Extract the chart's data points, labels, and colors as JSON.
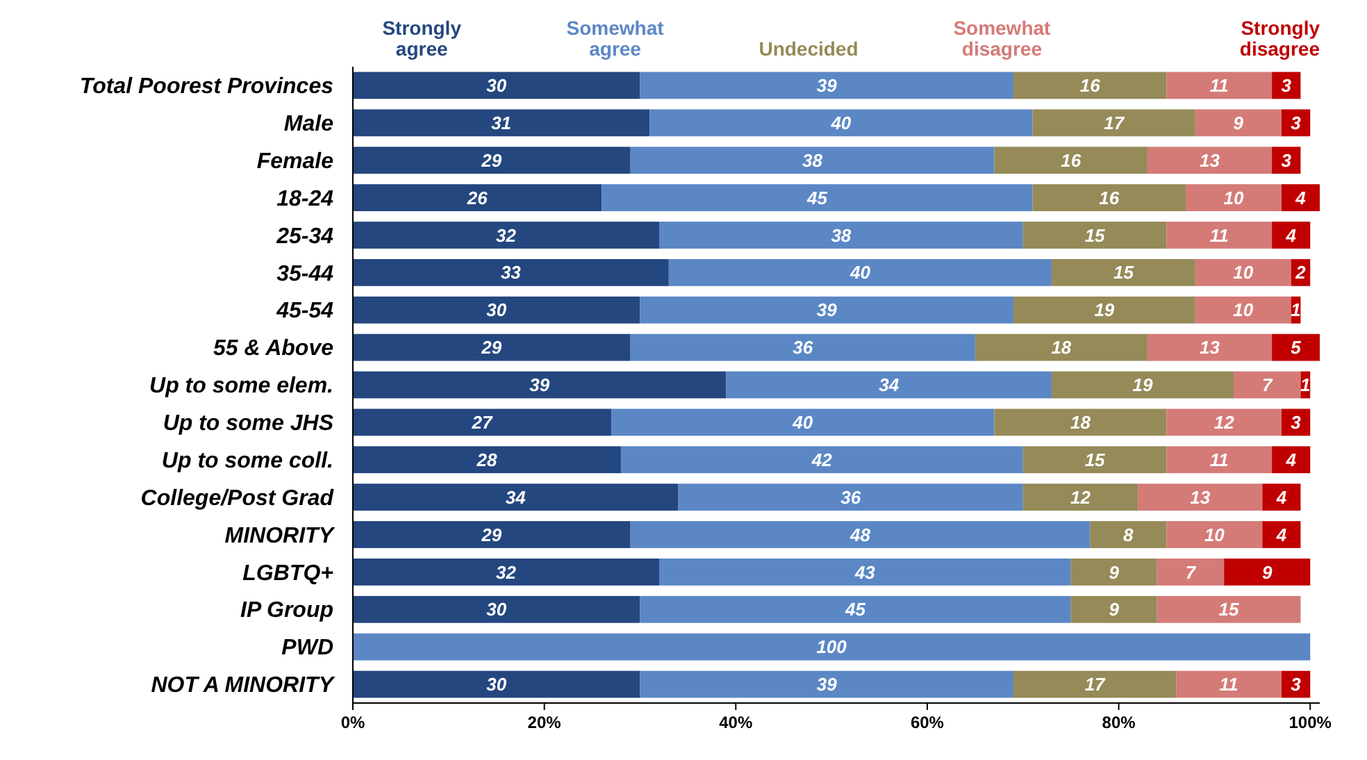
{
  "chart_data": {
    "type": "bar",
    "orientation": "horizontal",
    "stacked": true,
    "data_labels": true,
    "legend": "top",
    "grid": false,
    "categories": [
      "Total Poorest Provinces",
      "Male",
      "Female",
      "18-24",
      "25-34",
      "35-44",
      "45-54",
      "55 & Above",
      "Up to some elem.",
      "Up to some JHS",
      "Up to some coll.",
      "College/Post Grad",
      "MINORITY",
      "LGBTQ+",
      "IP Group",
      "PWD",
      "NOT A MINORITY"
    ],
    "xlim": [
      0,
      101
    ],
    "xticks": [
      {
        "value": 0,
        "label": "0%"
      },
      {
        "value": 20,
        "label": "20%"
      },
      {
        "value": 40,
        "label": "40%"
      },
      {
        "value": 60,
        "label": "60%"
      },
      {
        "value": 80,
        "label": "80%"
      },
      {
        "value": 100,
        "label": "100%"
      }
    ],
    "series": [
      {
        "name": "Strongly agree",
        "color": "#24477f",
        "values": [
          30,
          31,
          29,
          26,
          32,
          33,
          30,
          29,
          39,
          27,
          28,
          34,
          29,
          32,
          30,
          null,
          30
        ]
      },
      {
        "name": "Somewhat agree",
        "color": "#5b87c5",
        "values": [
          39,
          40,
          38,
          45,
          38,
          40,
          39,
          36,
          34,
          40,
          42,
          36,
          48,
          43,
          45,
          100,
          39
        ]
      },
      {
        "name": "Undecided",
        "color": "#958a58",
        "values": [
          16,
          17,
          16,
          16,
          15,
          15,
          19,
          18,
          19,
          18,
          15,
          12,
          8,
          9,
          9,
          null,
          17
        ]
      },
      {
        "name": "Somewhat disagree",
        "color": "#d47b78",
        "values": [
          11,
          9,
          13,
          10,
          11,
          10,
          10,
          13,
          7,
          12,
          11,
          13,
          10,
          7,
          15,
          null,
          11
        ]
      },
      {
        "name": "Strongly disagree",
        "color": "#c00000",
        "values": [
          3,
          3,
          3,
          4,
          4,
          2,
          1,
          5,
          1,
          3,
          4,
          4,
          4,
          9,
          null,
          null,
          3
        ]
      }
    ]
  }
}
